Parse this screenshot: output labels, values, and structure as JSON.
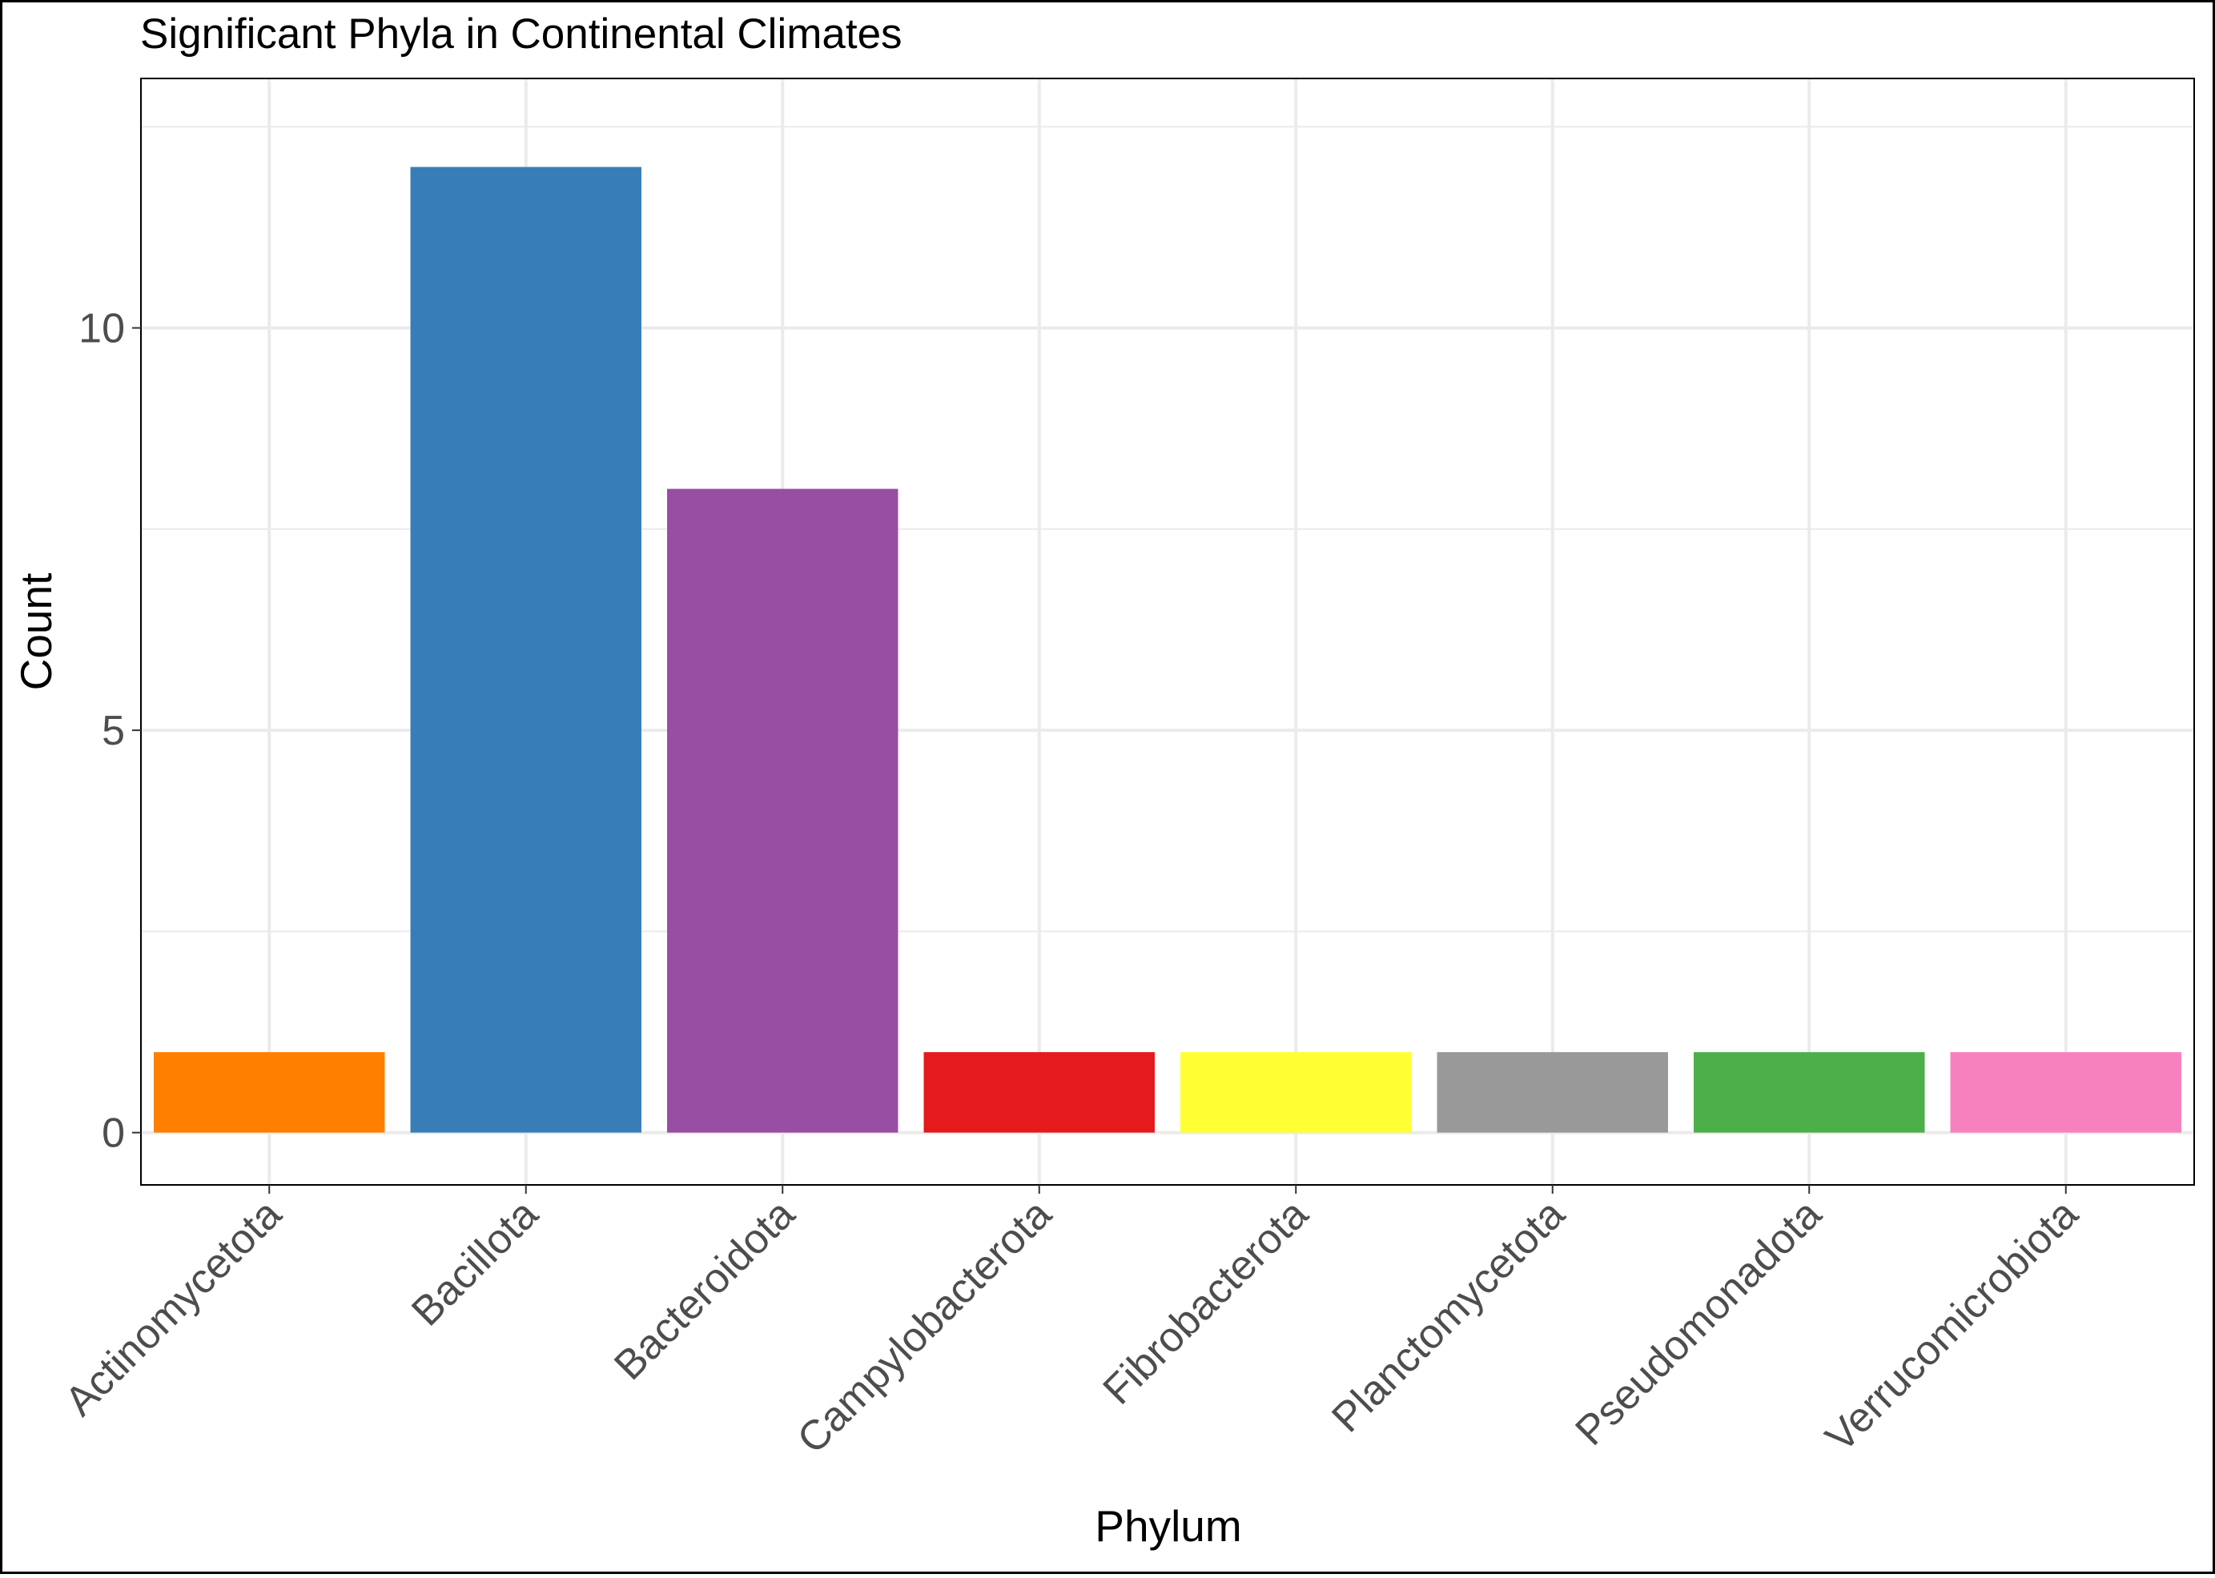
{
  "chart_data": {
    "type": "bar",
    "title": "Significant Phyla in Continental Climates",
    "xlabel": "Phylum",
    "ylabel": "Count",
    "categories": [
      "Actinomycetota",
      "Bacillota",
      "Bacteroidota",
      "Campylobacterota",
      "Fibrobacterota",
      "Planctomycetota",
      "Pseudomonadota",
      "Verrucomicrobiota"
    ],
    "values": [
      1,
      12,
      8,
      1,
      1,
      1,
      1,
      1
    ],
    "colors": [
      "#FF7F00",
      "#377EB8",
      "#984EA3",
      "#E41A1C",
      "#FFFF33",
      "#999999",
      "#4DAF4A",
      "#F781BF"
    ],
    "ylim": [
      -0.65,
      13.1
    ],
    "y_major_ticks": [
      0,
      5,
      10
    ],
    "y_minor_ticks": [
      2.5,
      7.5,
      12.5
    ],
    "grid": true,
    "legend": "none"
  }
}
